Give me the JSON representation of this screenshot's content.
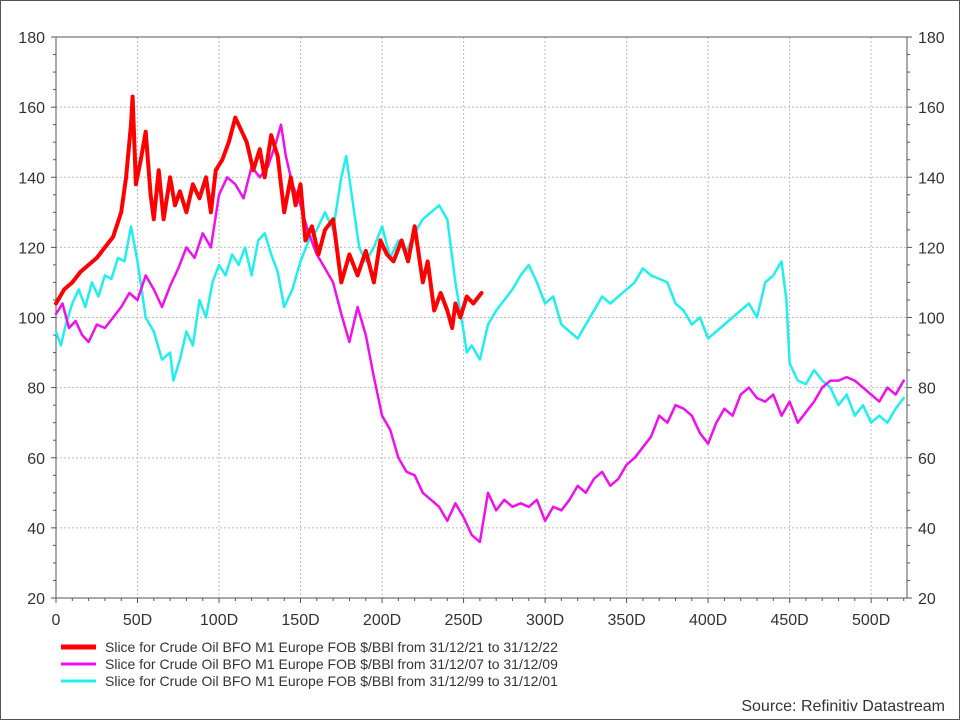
{
  "chart_data": {
    "type": "line",
    "x_tick_labels": [
      "0",
      "50D",
      "100D",
      "150D",
      "200D",
      "250D",
      "300D",
      "350D",
      "400D",
      "450D",
      "500D"
    ],
    "x_tick_values": [
      0,
      50,
      100,
      150,
      200,
      250,
      300,
      350,
      400,
      450,
      500
    ],
    "xlim": [
      0,
      522
    ],
    "ylim": [
      20,
      180
    ],
    "y_ticks": [
      20,
      40,
      60,
      80,
      100,
      120,
      140,
      160,
      180
    ],
    "left_axis": true,
    "right_axis": true,
    "grid": true,
    "legend_position": "bottom-left",
    "series": [
      {
        "name": "Slice for Crude Oil BFO M1 Europe FOB $/BBl from 31/12/21 to 31/12/22",
        "color": "#ff0000",
        "width": "thick",
        "x": [
          0,
          5,
          10,
          15,
          20,
          25,
          30,
          35,
          40,
          43,
          46,
          47,
          49,
          52,
          55,
          58,
          60,
          63,
          66,
          70,
          73,
          76,
          80,
          84,
          88,
          92,
          95,
          98,
          102,
          106,
          110,
          114,
          117,
          121,
          125,
          128,
          132,
          136,
          140,
          144,
          147,
          150,
          153,
          157,
          161,
          165,
          170,
          175,
          180,
          185,
          190,
          195,
          199,
          203,
          207,
          212,
          216,
          220,
          225,
          228,
          232,
          236,
          240,
          243,
          245,
          248,
          252,
          256,
          261
        ],
        "y": [
          104,
          108,
          110,
          113,
          115,
          117,
          120,
          123,
          130,
          140,
          155,
          163,
          138,
          145,
          153,
          135,
          128,
          142,
          128,
          140,
          132,
          136,
          130,
          138,
          134,
          140,
          130,
          142,
          145,
          150,
          157,
          153,
          150,
          142,
          148,
          140,
          152,
          146,
          130,
          140,
          132,
          138,
          122,
          126,
          118,
          125,
          128,
          110,
          118,
          112,
          119,
          110,
          122,
          118,
          116,
          122,
          116,
          126,
          110,
          116,
          102,
          107,
          102,
          97,
          104,
          100,
          106,
          104,
          107
        ]
      },
      {
        "name": "Slice for Crude Oil BFO M1 Europe FOB $/BBl from 31/12/07 to 31/12/09",
        "color": "#ee11ee",
        "width": "normal",
        "x": [
          0,
          4,
          8,
          12,
          16,
          20,
          25,
          30,
          35,
          40,
          45,
          50,
          55,
          60,
          65,
          70,
          75,
          80,
          85,
          90,
          95,
          100,
          105,
          110,
          115,
          120,
          125,
          130,
          135,
          138,
          141,
          145,
          150,
          155,
          160,
          165,
          170,
          175,
          180,
          185,
          190,
          195,
          200,
          205,
          210,
          215,
          220,
          225,
          230,
          235,
          240,
          245,
          250,
          255,
          260,
          265,
          270,
          275,
          280,
          285,
          290,
          295,
          300,
          305,
          310,
          315,
          320,
          325,
          330,
          335,
          340,
          345,
          350,
          355,
          360,
          365,
          370,
          375,
          380,
          385,
          390,
          395,
          400,
          405,
          410,
          415,
          420,
          425,
          430,
          435,
          440,
          445,
          450,
          455,
          460,
          465,
          470,
          475,
          480,
          485,
          490,
          495,
          500,
          505,
          510,
          515,
          520
        ],
        "y": [
          101,
          104,
          97,
          99,
          95,
          93,
          98,
          97,
          100,
          103,
          107,
          105,
          112,
          108,
          103,
          109,
          114,
          120,
          117,
          124,
          120,
          135,
          140,
          138,
          134,
          143,
          140,
          143,
          150,
          155,
          146,
          138,
          132,
          124,
          118,
          114,
          110,
          101,
          93,
          103,
          95,
          83,
          72,
          68,
          60,
          56,
          55,
          50,
          48,
          46,
          42,
          47,
          43,
          38,
          36,
          50,
          45,
          48,
          46,
          47,
          46,
          48,
          42,
          46,
          45,
          48,
          52,
          50,
          54,
          56,
          52,
          54,
          58,
          60,
          63,
          66,
          72,
          70,
          75,
          74,
          72,
          67,
          64,
          70,
          74,
          72,
          78,
          80,
          77,
          76,
          78,
          72,
          76,
          70,
          73,
          76,
          80,
          82,
          82,
          83,
          82,
          80,
          78,
          76,
          80,
          78,
          82
        ]
      },
      {
        "name": "Slice for Crude Oil BFO M1 Europe FOB $/BBl from 31/12/99 to 31/12/01",
        "color": "#22eeee",
        "width": "normal",
        "x": [
          0,
          3,
          6,
          10,
          14,
          18,
          22,
          26,
          30,
          34,
          38,
          42,
          46,
          50,
          55,
          60,
          65,
          70,
          72,
          76,
          80,
          84,
          88,
          92,
          96,
          100,
          104,
          108,
          112,
          116,
          120,
          124,
          128,
          132,
          136,
          140,
          145,
          150,
          155,
          160,
          165,
          170,
          175,
          178,
          182,
          186,
          190,
          195,
          200,
          205,
          210,
          215,
          220,
          225,
          230,
          235,
          240,
          245,
          250,
          252,
          255,
          260,
          265,
          270,
          275,
          280,
          285,
          290,
          295,
          300,
          305,
          310,
          315,
          320,
          325,
          330,
          335,
          340,
          345,
          350,
          355,
          360,
          365,
          370,
          375,
          380,
          385,
          390,
          395,
          400,
          405,
          410,
          415,
          420,
          425,
          430,
          435,
          440,
          445,
          448,
          450,
          455,
          460,
          465,
          470,
          475,
          480,
          485,
          490,
          495,
          500,
          505,
          510,
          515,
          520
        ],
        "y": [
          96,
          92,
          98,
          104,
          108,
          103,
          110,
          106,
          112,
          111,
          117,
          116,
          126,
          116,
          100,
          96,
          88,
          90,
          82,
          88,
          96,
          92,
          105,
          100,
          110,
          115,
          112,
          118,
          115,
          120,
          112,
          122,
          124,
          118,
          113,
          103,
          108,
          116,
          122,
          125,
          130,
          125,
          140,
          146,
          133,
          120,
          116,
          120,
          126,
          117,
          122,
          119,
          124,
          128,
          130,
          132,
          128,
          110,
          96,
          90,
          92,
          88,
          98,
          102,
          105,
          108,
          112,
          115,
          110,
          104,
          106,
          98,
          96,
          94,
          98,
          102,
          106,
          104,
          106,
          108,
          110,
          114,
          112,
          111,
          110,
          104,
          102,
          98,
          100,
          94,
          96,
          98,
          100,
          102,
          104,
          100,
          110,
          112,
          116,
          105,
          87,
          82,
          81,
          85,
          82,
          80,
          75,
          78,
          72,
          75,
          70,
          72,
          70,
          74,
          77
        ]
      }
    ]
  },
  "source": "Source: Refinitiv Datastream"
}
